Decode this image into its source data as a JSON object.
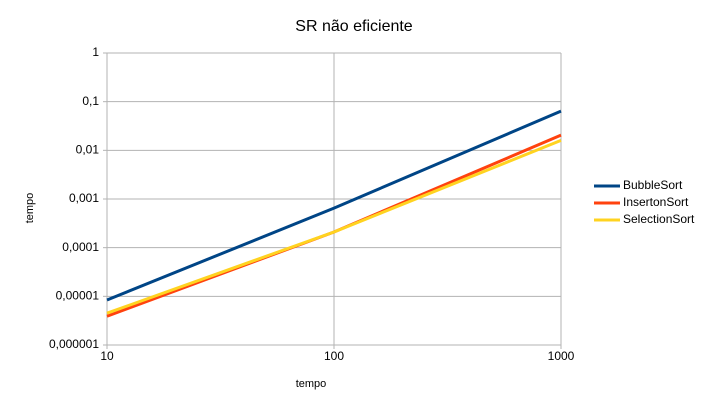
{
  "chart_data": {
    "type": "line",
    "title": "SR não eficiente",
    "x_label": "tempo",
    "y_label": "tempo",
    "x": [
      10,
      100,
      1000
    ],
    "series": [
      {
        "name": "BubbleSort",
        "color": "#004586",
        "values": [
          8.4e-06,
          0.00065,
          0.064
        ]
      },
      {
        "name": "InsertonSort",
        "color": "#ff420e",
        "values": [
          3.9e-06,
          0.00021,
          0.0205
        ]
      },
      {
        "name": "SelectionSort",
        "color": "#ffd320",
        "values": [
          4.5e-06,
          0.00021,
          0.016
        ]
      }
    ],
    "xlim": [
      10,
      1000
    ],
    "xticks": [
      10,
      100,
      1000
    ],
    "ylim": [
      1e-06,
      1
    ],
    "yticks": [
      {
        "value": 1e-06,
        "label": "0,000001"
      },
      {
        "value": 1e-05,
        "label": "0,00001"
      },
      {
        "value": 0.0001,
        "label": "0,0001"
      },
      {
        "value": 0.001,
        "label": "0,001"
      },
      {
        "value": 0.01,
        "label": "0,01"
      },
      {
        "value": 0.1,
        "label": "0,1"
      },
      1
    ],
    "xlog": true,
    "ylog": true,
    "grid": true,
    "legend": "right"
  }
}
